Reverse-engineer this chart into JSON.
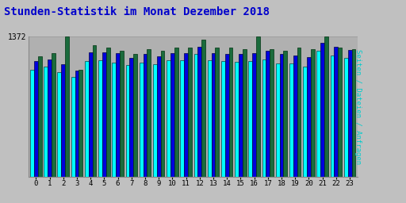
{
  "title": "Stunden-Statistik im Monat Dezember 2018",
  "ylabel": "Seiten / Dateien / Anfragen",
  "ytick_label": "1372",
  "hours": [
    0,
    1,
    2,
    3,
    4,
    5,
    6,
    7,
    8,
    9,
    10,
    11,
    12,
    13,
    14,
    15,
    16,
    17,
    18,
    19,
    20,
    21,
    22,
    23
  ],
  "cyan": [
    1050,
    1080,
    1020,
    980,
    1130,
    1140,
    1120,
    1090,
    1120,
    1100,
    1140,
    1140,
    1200,
    1140,
    1130,
    1125,
    1130,
    1150,
    1110,
    1110,
    1080,
    1230,
    1190,
    1160
  ],
  "blue": [
    1130,
    1150,
    1100,
    1040,
    1220,
    1220,
    1210,
    1160,
    1200,
    1180,
    1210,
    1210,
    1270,
    1210,
    1200,
    1200,
    1210,
    1230,
    1200,
    1190,
    1170,
    1310,
    1270,
    1240
  ],
  "green": [
    1180,
    1210,
    1372,
    1050,
    1290,
    1260,
    1230,
    1200,
    1245,
    1230,
    1265,
    1260,
    1340,
    1260,
    1260,
    1245,
    1372,
    1250,
    1230,
    1260,
    1250,
    1372,
    1260,
    1250
  ],
  "color_cyan": "#00FFFF",
  "color_blue": "#0000DD",
  "color_green": "#1A6B3C",
  "fig_bg": "#C0C0C0",
  "plot_bg": "#B0B0B0",
  "title_color": "#0000CC",
  "ylabel_color": "#00CCCC",
  "ymax": 1372,
  "title_fontsize": 10,
  "bar_width": 0.28
}
